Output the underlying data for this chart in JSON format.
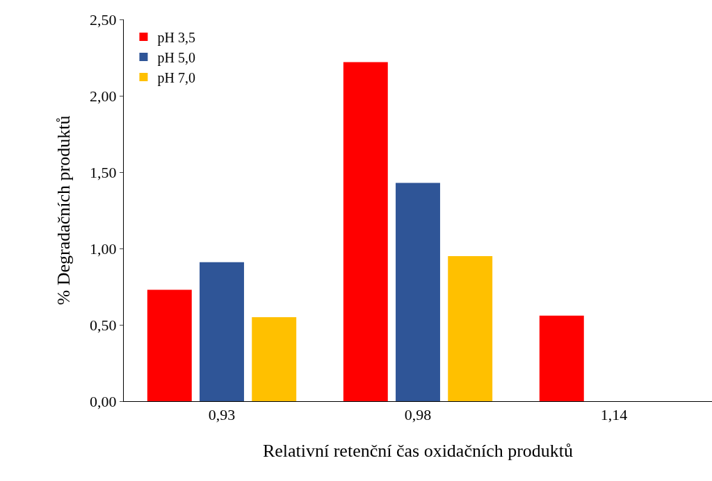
{
  "chart_data": {
    "type": "bar",
    "xlabel": "Relativní retenční čas oxidačních produktů",
    "ylabel": "% Degradačních produktů",
    "categories": [
      "0,93",
      "0,98",
      "1,14"
    ],
    "series": [
      {
        "name": "pH 3,5",
        "color": "#ff0000",
        "values": [
          0.73,
          2.22,
          0.56
        ]
      },
      {
        "name": "pH 5,0",
        "color": "#2f5597",
        "values": [
          0.91,
          1.43,
          null
        ]
      },
      {
        "name": "pH 7,0",
        "color": "#ffc000",
        "values": [
          0.55,
          0.95,
          null
        ]
      }
    ],
    "ylim": [
      0,
      2.5
    ],
    "yticks": [
      {
        "value": 0,
        "label": "0,00"
      },
      {
        "value": 0.5,
        "label": "0,50"
      },
      {
        "value": 1,
        "label": "1,00"
      },
      {
        "value": 1.5,
        "label": "1,50"
      },
      {
        "value": 2,
        "label": "2,00"
      },
      {
        "value": 2.5,
        "label": "2,50"
      }
    ],
    "legend": "top left"
  }
}
